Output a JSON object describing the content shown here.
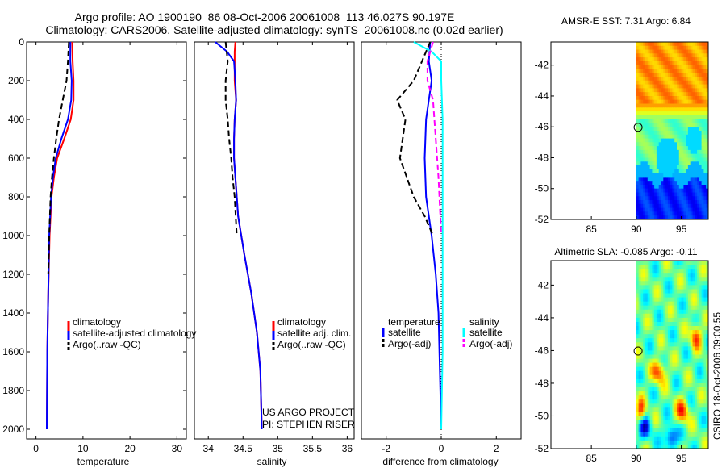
{
  "header": {
    "line1": "Argo profile: AO 1900190_86 08-Oct-2006 20061008_113 46.027S 90.197E",
    "line2": "Climatology: CARS2006. Satellite-adjusted climatology: synTS_20061008.nc (0.02d earlier)"
  },
  "side_text": "CSIRO 18-Oct-2006 09:00:55",
  "credit": {
    "line1": "US ARGO PROJECT",
    "line2": "PI: STEPHEN RISER"
  },
  "colors": {
    "red": "#ff0000",
    "blue": "#0000ff",
    "black": "#000000",
    "cyan": "#00ffff",
    "magenta": "#ff00ff"
  },
  "chart_data": [
    {
      "type": "line",
      "name": "temperature",
      "xlabel": "temperature",
      "xlim": [
        -2,
        32
      ],
      "ylim": [
        2050,
        0
      ],
      "xticks": [
        0,
        10,
        20,
        30
      ],
      "yticks": [
        0,
        200,
        400,
        600,
        800,
        1000,
        1200,
        1400,
        1600,
        1800,
        2000
      ],
      "legend": [
        "climatology",
        "satellite-adjusted climatology",
        "Argo(..raw -QC)"
      ],
      "series": [
        {
          "name": "climatology",
          "color": "#ff0000",
          "style": "solid",
          "x": [
            7.7,
            7.8,
            8.0,
            8.0,
            7.4,
            6.0,
            4.5,
            3.8,
            3.3,
            2.9,
            2.6,
            2.4,
            2.3
          ],
          "y": [
            0,
            100,
            200,
            300,
            400,
            500,
            600,
            700,
            800,
            1000,
            1300,
            1600,
            2000
          ]
        },
        {
          "name": "satellite-adjusted climatology",
          "color": "#0000ff",
          "style": "solid",
          "x": [
            7.3,
            7.3,
            7.6,
            7.5,
            6.8,
            5.4,
            4.2,
            3.6,
            3.2,
            2.8,
            2.6,
            2.4,
            2.3
          ],
          "y": [
            0,
            100,
            200,
            300,
            400,
            500,
            600,
            700,
            800,
            1000,
            1300,
            1600,
            2000
          ]
        },
        {
          "name": "Argo(..raw -QC)",
          "color": "#000000",
          "style": "dashed",
          "x": [
            7.0,
            6.8,
            6.5,
            5.7,
            4.9,
            4.3,
            3.8,
            3.4,
            3.1,
            2.8,
            2.6
          ],
          "y": [
            0,
            100,
            200,
            300,
            400,
            500,
            600,
            700,
            800,
            1000,
            1200
          ]
        }
      ]
    },
    {
      "type": "line",
      "name": "salinity",
      "xlabel": "salinity",
      "xlim": [
        33.8,
        36.1
      ],
      "ylim": [
        2050,
        0
      ],
      "xticks": [
        34,
        34.5,
        35,
        35.5,
        36
      ],
      "xticklabels": [
        "34",
        "34.5",
        "35",
        "35.5",
        "36"
      ],
      "legend": [
        "climatology",
        "satellite adj. clim.",
        "Argo(..raw -QC)"
      ],
      "series": [
        {
          "name": "climatology",
          "color": "#ff0000",
          "style": "solid",
          "x": [
            34.39,
            34.38,
            34.38,
            34.38,
            34.4,
            34.38,
            34.37,
            34.37,
            34.39,
            34.43,
            34.52,
            34.62,
            34.7,
            34.75,
            34.77
          ],
          "y": [
            0,
            50,
            100,
            200,
            300,
            400,
            500,
            600,
            700,
            900,
            1100,
            1300,
            1500,
            1700,
            2000
          ]
        },
        {
          "name": "satellite adj. clim.",
          "color": "#0000ff",
          "style": "solid",
          "x": [
            34.1,
            34.27,
            34.37,
            34.39,
            34.4,
            34.38,
            34.37,
            34.37,
            34.39,
            34.43,
            34.52,
            34.62,
            34.7,
            34.75,
            34.77
          ],
          "y": [
            0,
            50,
            100,
            200,
            300,
            400,
            500,
            600,
            700,
            900,
            1100,
            1300,
            1500,
            1700,
            2000
          ]
        },
        {
          "name": "Argo(..raw -QC)",
          "color": "#000000",
          "style": "dashed",
          "x": [
            34.25,
            34.28,
            34.25,
            34.25,
            34.28,
            34.3,
            34.33,
            34.35,
            34.38,
            34.41
          ],
          "y": [
            0,
            100,
            200,
            300,
            400,
            500,
            600,
            700,
            800,
            1000
          ]
        }
      ]
    },
    {
      "type": "line",
      "name": "difference",
      "xlabel": "difference from climatology",
      "xlim": [
        -2.9,
        2.9
      ],
      "ylim": [
        2050,
        0
      ],
      "xticks": [
        -2,
        0,
        2
      ],
      "legend_temperature_title": "temperature",
      "legend_salinity_title": "salinity",
      "legend": [
        "satellite",
        "Argo(-adj)",
        "satellite",
        "Argo(-adj)"
      ],
      "series": [
        {
          "name": "temperature satellite",
          "color": "#0000ff",
          "style": "solid",
          "x": [
            -0.4,
            -0.45,
            -0.35,
            -0.45,
            -0.55,
            -0.6,
            -0.55,
            -0.35,
            -0.2,
            -0.1,
            -0.05,
            0.0
          ],
          "y": [
            0,
            100,
            200,
            300,
            400,
            600,
            800,
            1000,
            1200,
            1400,
            1700,
            2000
          ]
        },
        {
          "name": "temperature Argo(-adj)",
          "color": "#000000",
          "style": "dashed",
          "x": [
            -0.4,
            -0.7,
            -1.0,
            -1.6,
            -1.3,
            -1.5,
            -1.0,
            -0.6,
            -0.3
          ],
          "y": [
            0,
            100,
            200,
            300,
            400,
            600,
            800,
            900,
            1000
          ]
        },
        {
          "name": "salinity satellite",
          "color": "#00ffff",
          "style": "solid",
          "x": [
            -1.0,
            -0.35,
            0.0,
            0.0,
            0.05,
            0.05,
            0.05,
            0.05,
            0.05,
            0.0
          ],
          "y": [
            0,
            50,
            100,
            200,
            400,
            600,
            900,
            1200,
            1600,
            2000
          ]
        },
        {
          "name": "salinity Argo(-adj)",
          "color": "#ff00ff",
          "style": "dashed",
          "x": [
            -0.3,
            -0.5,
            -0.5,
            -0.3,
            -0.2,
            -0.1,
            0.0
          ],
          "y": [
            0,
            100,
            200,
            300,
            500,
            700,
            1000
          ]
        }
      ]
    },
    {
      "type": "heatmap",
      "name": "sst-map",
      "title": "AMSR-E SST: 7.31 Argo: 6.84",
      "xlim": [
        80.5,
        98
      ],
      "ylim": [
        -52,
        -40.5
      ],
      "xticks": [
        85,
        90,
        95
      ],
      "yticks": [
        -42,
        -44,
        -46,
        -48,
        -50,
        -52
      ],
      "float_position": {
        "lon": 90.2,
        "lat": -46.03
      }
    },
    {
      "type": "heatmap",
      "name": "sla-map",
      "title": "Altimetric SLA: -0.085 Argo: -0.11",
      "xlim": [
        80.5,
        98
      ],
      "ylim": [
        -52,
        -40.5
      ],
      "xticks": [
        85,
        90,
        95
      ],
      "yticks": [
        -42,
        -44,
        -46,
        -48,
        -50,
        -52
      ],
      "float_position": {
        "lon": 90.2,
        "lat": -46.03
      }
    }
  ]
}
